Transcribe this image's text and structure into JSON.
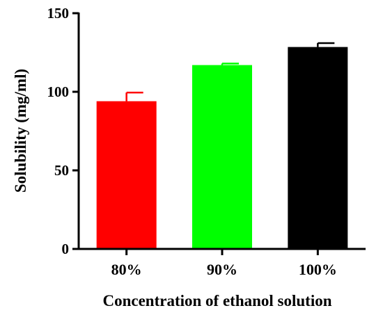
{
  "chart_data": {
    "type": "bar",
    "categories": [
      "80%",
      "90%",
      "100%"
    ],
    "values": [
      94,
      117,
      128.5
    ],
    "errors": [
      5.5,
      1,
      2.5
    ],
    "colors": [
      "#ff0000",
      "#00ff00",
      "#000000"
    ],
    "xlabel": "Concentration of ethanol solution",
    "ylabel": "Solubility (mg/ml)",
    "ylim": [
      0,
      150
    ],
    "yticks": [
      0,
      50,
      100,
      150
    ],
    "ytick_labels": [
      "0",
      "50",
      "100",
      "150"
    ],
    "grid": false,
    "legend": "none"
  }
}
